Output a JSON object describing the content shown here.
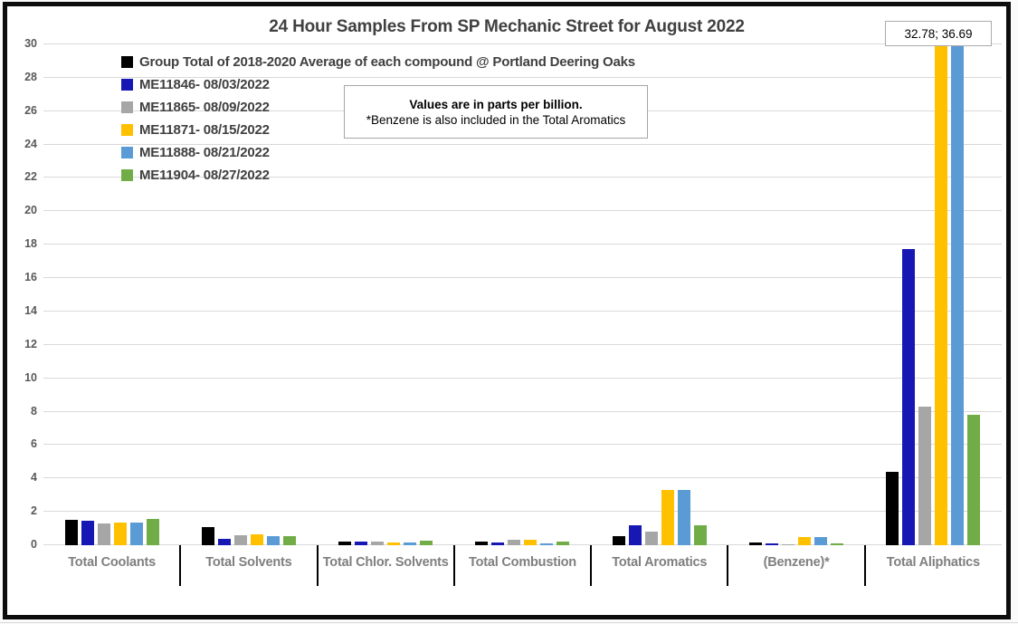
{
  "chart_data": {
    "type": "bar",
    "title": "24 Hour Samples From SP Mechanic Street for August 2022",
    "categories": [
      "Total Coolants",
      "Total Solvents",
      "Total Chlor. Solvents",
      "Total Combustion",
      "Total Aromatics",
      "(Benzene)*",
      "Total Aliphatics"
    ],
    "series": [
      {
        "name": "Group Total of 2018-2020 Average of each compound @ Portland Deering Oaks",
        "color": "#000000",
        "values": [
          1.5,
          1.1,
          0.2,
          0.2,
          0.55,
          0.15,
          4.4
        ]
      },
      {
        "name": "ME11846- 08/03/2022",
        "color": "#1717b4",
        "values": [
          1.45,
          0.4,
          0.2,
          0.15,
          1.2,
          0.1,
          17.75
        ]
      },
      {
        "name": "ME11865- 08/09/2022",
        "color": "#a6a6a6",
        "values": [
          1.3,
          0.6,
          0.2,
          0.3,
          0.8,
          0.05,
          8.3
        ]
      },
      {
        "name": "ME11871- 08/15/2022",
        "color": "#ffc000",
        "values": [
          1.35,
          0.65,
          0.15,
          0.3,
          3.3,
          0.5,
          32.78
        ]
      },
      {
        "name": "ME11888- 08/21/2022",
        "color": "#5b9bd5",
        "values": [
          1.35,
          0.55,
          0.15,
          0.1,
          3.3,
          0.5,
          36.69
        ]
      },
      {
        "name": "ME11904- 08/27/2022",
        "color": "#70ad47",
        "values": [
          1.55,
          0.55,
          0.25,
          0.2,
          1.2,
          0.1,
          7.8
        ]
      }
    ],
    "ylim": [
      0,
      30
    ],
    "y_tick_step": 2,
    "grid": true,
    "legend_position": "top-left",
    "units_note": "parts per billion"
  },
  "annotation_box": {
    "line1": "Values are in parts per billion.",
    "line2": "*Benzene is also included in the Total Aromatics"
  },
  "data_label": {
    "text": "32.78; 36.69"
  },
  "colors": {
    "grid": "#d9d9d9",
    "axis_text": "#595959",
    "category_text": "#7f7f7f",
    "title_text": "#404040",
    "frame_border": "#0d0d0d"
  }
}
